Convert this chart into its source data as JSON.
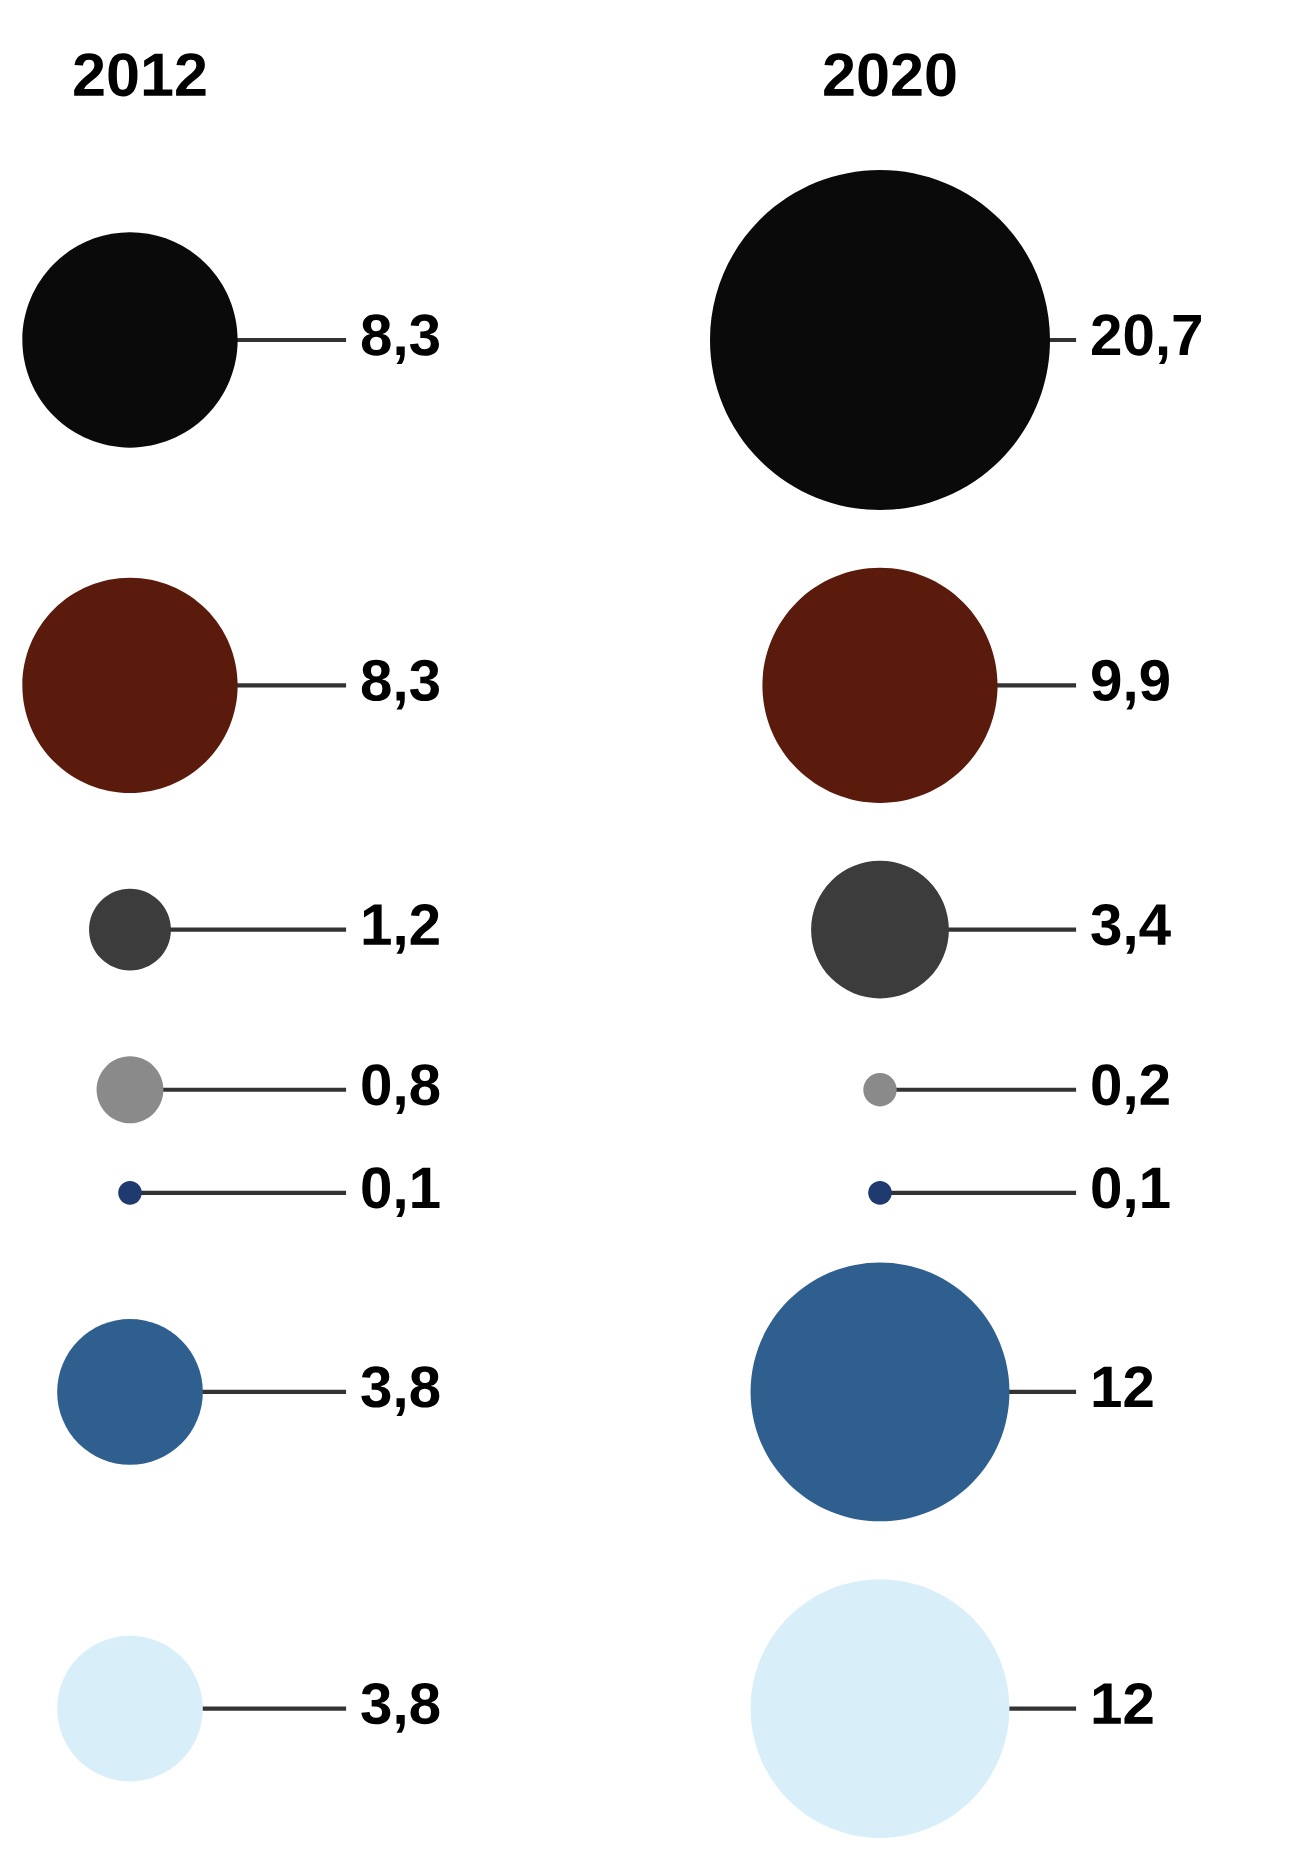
{
  "chart_data": {
    "type": "other",
    "categories": [
      "2012",
      "2020"
    ],
    "series": [
      {
        "color": "#0a0a0a",
        "values": [
          8.3,
          20.7
        ],
        "value_labels": [
          "8,3",
          "20,7"
        ]
      },
      {
        "color": "#5a1a0c",
        "values": [
          8.3,
          9.9
        ],
        "value_labels": [
          "8,3",
          "9,9"
        ]
      },
      {
        "color": "#3c3c3c",
        "values": [
          1.2,
          3.4
        ],
        "value_labels": [
          "1,2",
          "3,4"
        ]
      },
      {
        "color": "#8a8a8a",
        "values": [
          0.8,
          0.2
        ],
        "value_labels": [
          "0,8",
          "0,2"
        ]
      },
      {
        "color": "#1f3a6e",
        "values": [
          0.1,
          0.1
        ],
        "value_labels": [
          "0,1",
          "0,1"
        ]
      },
      {
        "color": "#2f5f8f",
        "values": [
          3.8,
          12
        ],
        "value_labels": [
          "3,8",
          "12"
        ]
      },
      {
        "color": "#d8effa",
        "values": [
          3.8,
          12
        ],
        "value_labels": [
          "3,8",
          "12"
        ]
      }
    ]
  }
}
